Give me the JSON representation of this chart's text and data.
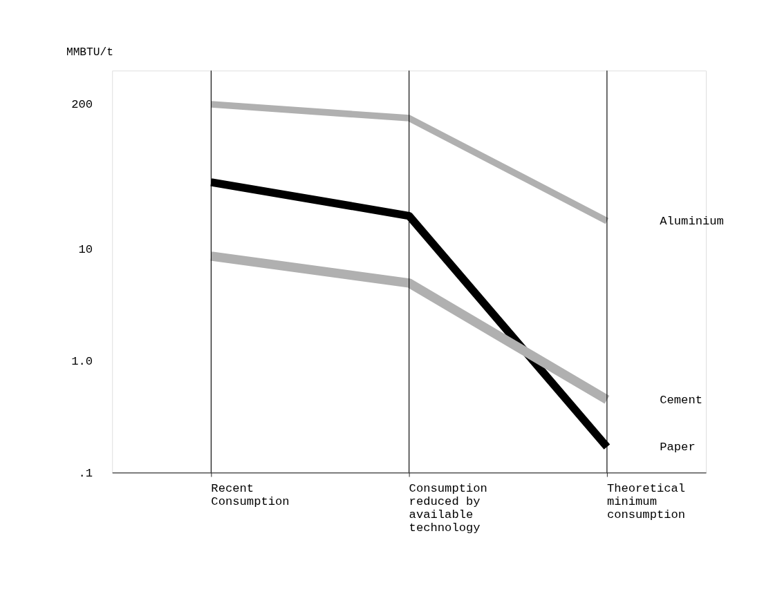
{
  "chart_data": {
    "type": "line",
    "ylabel": "MMBTU/t",
    "log": true,
    "ylim": [
      0.1,
      400
    ],
    "yticks": [
      {
        "value": 0.1,
        "label": ".1"
      },
      {
        "value": 1,
        "label": "1.0"
      },
      10,
      200
    ],
    "ref_lines": [
      {
        "axis": "x",
        "value": "Recent\nConsumption",
        "color": "#000000"
      },
      {
        "axis": "x",
        "value": "Consumption\nreduced by\navailable\ntechnology",
        "color": "#000000"
      },
      {
        "axis": "x",
        "value": "Theoretical\nminimum\nconsumption",
        "color": "#000000"
      }
    ],
    "legend": false,
    "marker": "none",
    "line_style": "solid",
    "categories": [
      "Recent\nConsumption",
      "Consumption\nreduced by\navailable\ntechnology",
      "Theoretical\nminimum\nconsumption"
    ],
    "series": [
      {
        "name": "Aluminium",
        "color": "#b0b0b0",
        "values": [
          200,
          150,
          18
        ]
      },
      {
        "name": "Paper",
        "color": "#000000",
        "values": [
          40,
          20,
          0.17
        ]
      },
      {
        "name": "Cement",
        "color": "#b0b0b0",
        "values": [
          8.7,
          5,
          0.45
        ]
      }
    ]
  }
}
